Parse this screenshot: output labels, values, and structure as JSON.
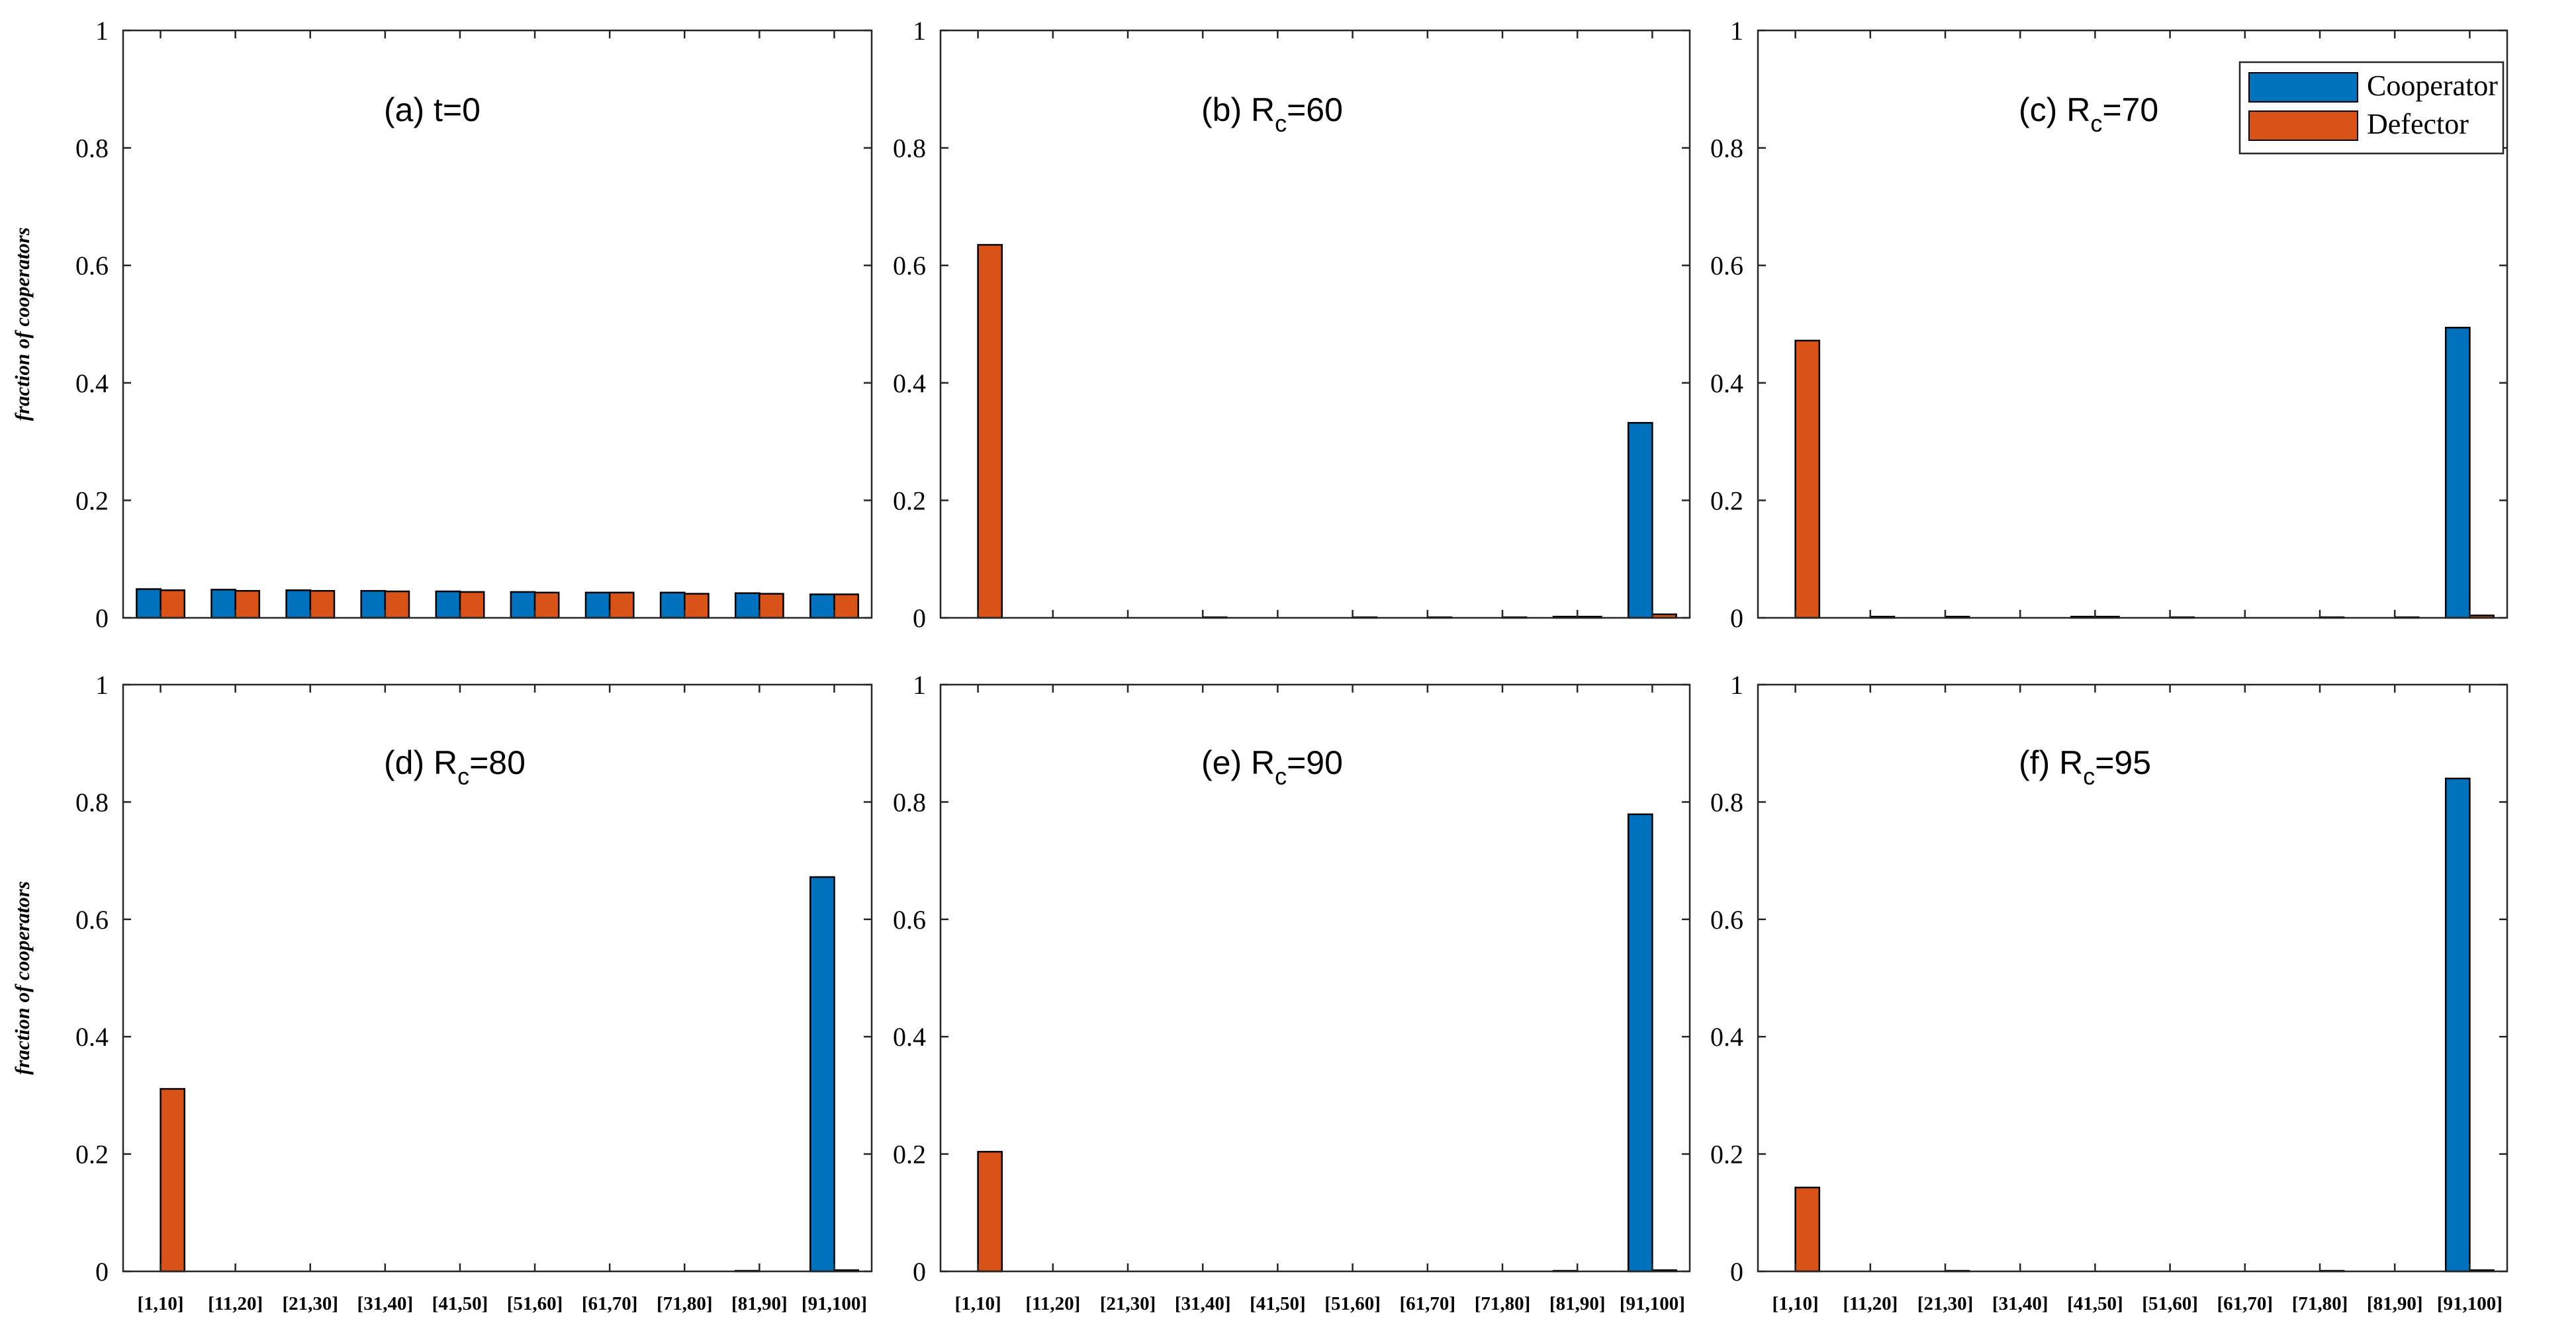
{
  "colors": {
    "cooperator": "#0072BD",
    "defector": "#D95319",
    "axis": "#262626",
    "bar_edge": "#000000"
  },
  "chart_data": {
    "type": "bar",
    "ylabel": "fraction of cooperators",
    "ylim": [
      0,
      1
    ],
    "yticks": [
      0,
      0.2,
      0.4,
      0.6,
      0.8,
      1
    ],
    "ytick_labels": [
      "0",
      "0.2",
      "0.4",
      "0.6",
      "0.8",
      "1"
    ],
    "categories": [
      "[1,10]",
      "[11,20]",
      "[21,30]",
      "[31,40]",
      "[41,50]",
      "[51,60]",
      "[61,70]",
      "[71,80]",
      "[81,90]",
      "[91,100]"
    ],
    "legend": {
      "position": "top-right",
      "entries": [
        "Cooperator",
        "Defector"
      ]
    },
    "panels": [
      {
        "label_prefix": "(a) t=0",
        "label_sub": "",
        "label_suffix": "",
        "series": [
          {
            "name": "Cooperator",
            "values": [
              0.049,
              0.048,
              0.047,
              0.046,
              0.045,
              0.044,
              0.043,
              0.043,
              0.042,
              0.04
            ]
          },
          {
            "name": "Defector",
            "values": [
              0.047,
              0.046,
              0.046,
              0.045,
              0.044,
              0.043,
              0.043,
              0.041,
              0.041,
              0.04
            ]
          }
        ]
      },
      {
        "label_prefix": "(b) R",
        "label_sub": "c",
        "label_suffix": "=60",
        "series": [
          {
            "name": "Cooperator",
            "values": [
              0,
              0,
              0,
              0,
              0,
              0,
              0,
              0,
              0.002,
              0.332
            ]
          },
          {
            "name": "Defector",
            "values": [
              0.635,
              0,
              0,
              0.001,
              0,
              0.001,
              0.001,
              0.001,
              0.002,
              0.006
            ]
          }
        ]
      },
      {
        "label_prefix": "(c) R",
        "label_sub": "c",
        "label_suffix": "=70",
        "series": [
          {
            "name": "Cooperator",
            "values": [
              0,
              0,
              0,
              0,
              0.002,
              0,
              0,
              0,
              0,
              0.494
            ]
          },
          {
            "name": "Defector",
            "values": [
              0.472,
              0.002,
              0.002,
              0,
              0.002,
              0.001,
              0,
              0.001,
              0.001,
              0.004
            ]
          }
        ]
      },
      {
        "label_prefix": "(d) R",
        "label_sub": "c",
        "label_suffix": "=80",
        "series": [
          {
            "name": "Cooperator",
            "values": [
              0,
              0,
              0,
              0,
              0,
              0,
              0,
              0,
              0.001,
              0.672
            ]
          },
          {
            "name": "Defector",
            "values": [
              0.311,
              0,
              0,
              0,
              0,
              0,
              0,
              0,
              0,
              0.002
            ]
          }
        ]
      },
      {
        "label_prefix": "(e) R",
        "label_sub": "c",
        "label_suffix": "=90",
        "series": [
          {
            "name": "Cooperator",
            "values": [
              0,
              0,
              0,
              0,
              0,
              0,
              0,
              0,
              0.001,
              0.779
            ]
          },
          {
            "name": "Defector",
            "values": [
              0.204,
              0,
              0,
              0,
              0,
              0,
              0,
              0,
              0,
              0.002
            ]
          }
        ]
      },
      {
        "label_prefix": "(f) R",
        "label_sub": "c",
        "label_suffix": "=95",
        "series": [
          {
            "name": "Cooperator",
            "values": [
              0,
              0,
              0,
              0,
              0,
              0,
              0,
              0,
              0,
              0.84
            ]
          },
          {
            "name": "Defector",
            "values": [
              0.143,
              0,
              0.001,
              0,
              0,
              0,
              0,
              0.001,
              0,
              0.002
            ]
          }
        ]
      }
    ]
  }
}
